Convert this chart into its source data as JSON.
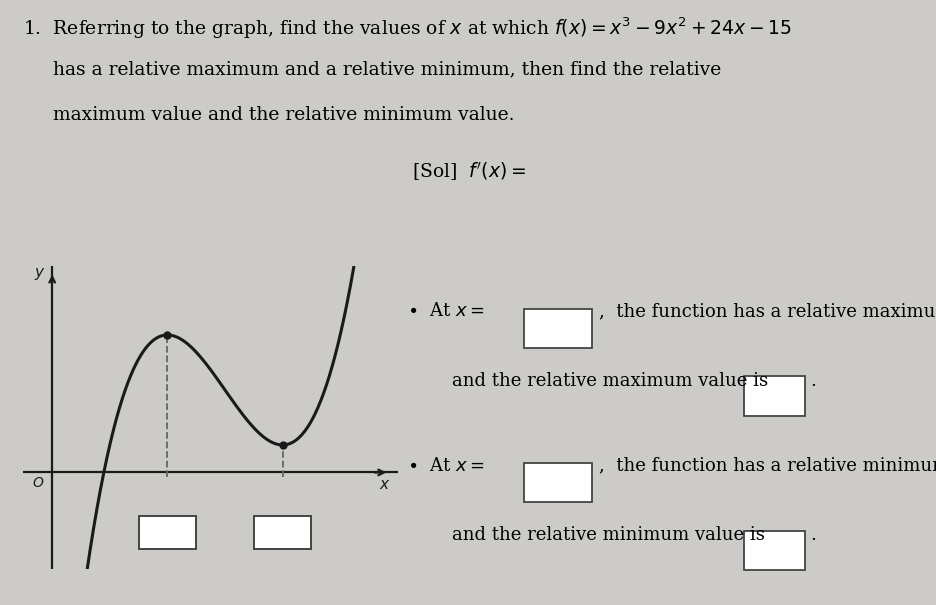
{
  "background_color": "#cccbc8",
  "curve_color": "#1a1a1a",
  "axis_color": "#1a1a1a",
  "dashed_color": "#666666",
  "box_edge_color": "#444444",
  "graph_xlim": [
    -0.5,
    6.0
  ],
  "graph_ylim": [
    -3.5,
    7.5
  ],
  "font_size_problem": 13.5,
  "font_size_sol": 13.5,
  "font_size_bullet": 13.0,
  "line1": "1.  Referring to the graph, find the values of $x$ at which $f(x)=x^3-9x^2+24x-15$",
  "line2": "     has a relative maximum and a relative minimum, then find the relative",
  "line3": "     maximum value and the relative minimum value.",
  "sol_text": "[Sol]  $f'(x) =$",
  "b1_pre": "$\\bullet$  At $x =$ ",
  "b1_post": ",  the function has a relative maximum,",
  "b1b": "and the relative maximum value is",
  "b2_pre": "$\\bullet$  At $x =$ ",
  "b2_post": ",  the function has a relative minimum,",
  "b2b": "and the relative minimum value is"
}
